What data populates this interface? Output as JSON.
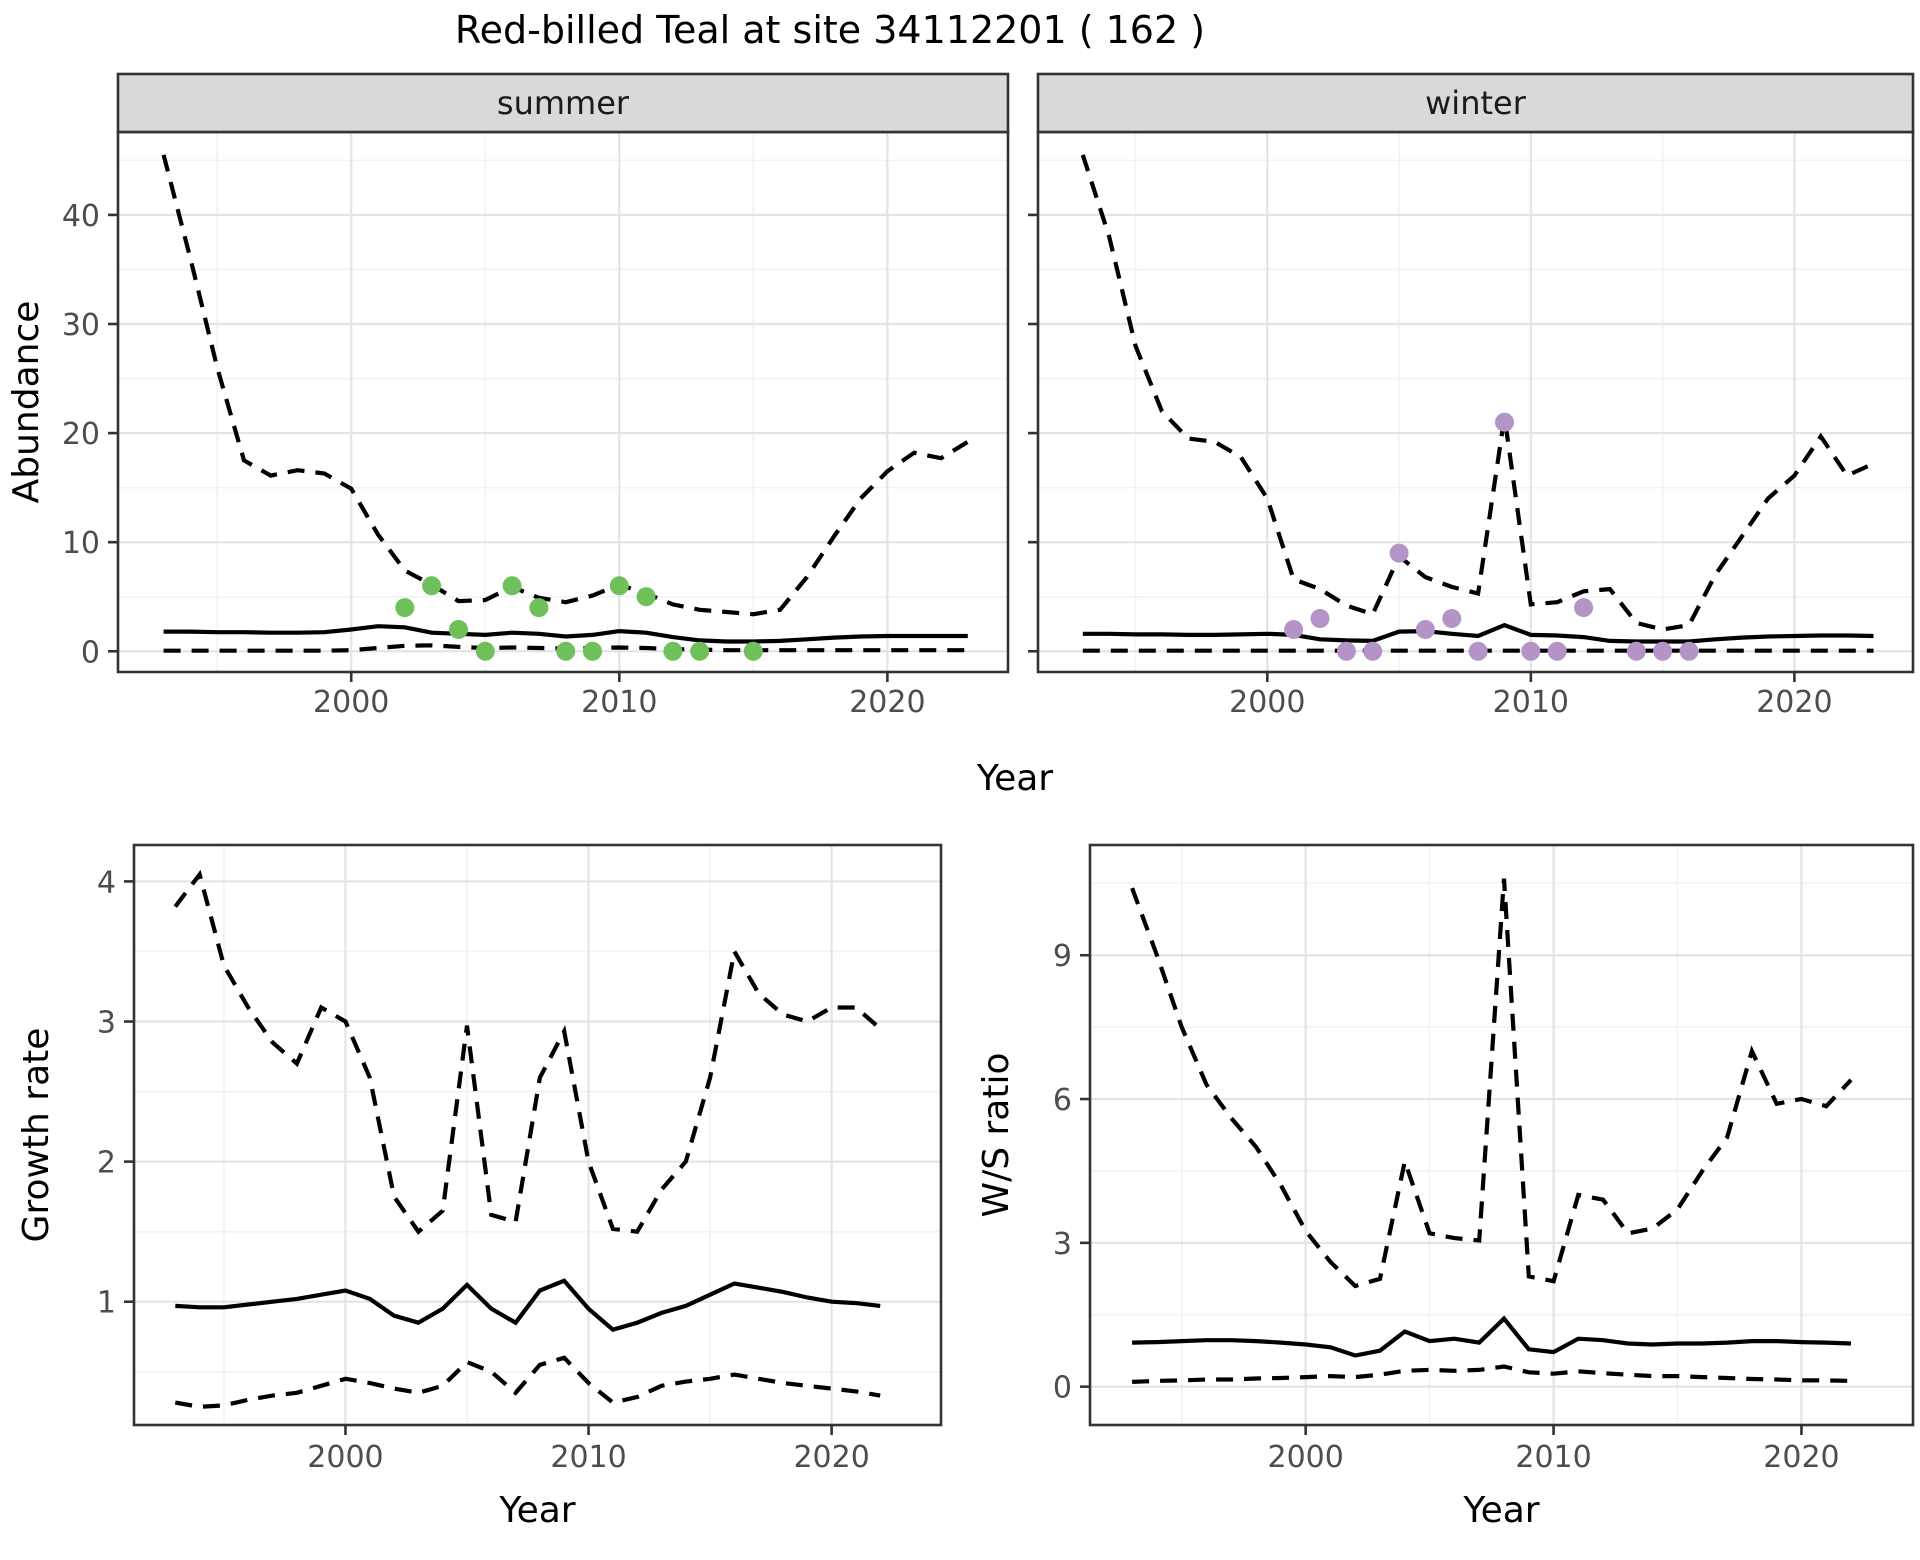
{
  "title": "Red-billed Teal at site 34112201 ( 162 )",
  "facets": {
    "summer_label": "summer",
    "winter_label": "winter"
  },
  "axis_titles": {
    "top_x": "Year",
    "top_y": "Abundance",
    "growth_x": "Year",
    "growth_y": "Growth rate",
    "ws_x": "Year",
    "ws_y": "W/S ratio"
  },
  "colors": {
    "summer_point": "#6fbf5a",
    "winter_point": "#b494c7",
    "line": "#000000",
    "strip_bg": "#d9d9d9",
    "panel_border": "#333333",
    "grid_major": "#e4e4e4",
    "grid_minor": "#f2f2f2",
    "tick_text": "#4d4d4d",
    "background": "#ffffff"
  },
  "chart_data": [
    {
      "id": "abundance-summer",
      "type": "line",
      "facet": "summer",
      "title": "summer",
      "xlabel": "Year",
      "ylabel": "Abundance",
      "xlim": [
        1991.3,
        2024.5
      ],
      "ylim": [
        -1.9,
        47.6
      ],
      "xticks": [
        2000,
        2010,
        2020
      ],
      "yticks": [
        0,
        10,
        20,
        30,
        40
      ],
      "x": [
        1993,
        1994,
        1995,
        1996,
        1997,
        1998,
        1999,
        2000,
        2001,
        2002,
        2003,
        2004,
        2005,
        2006,
        2007,
        2008,
        2009,
        2010,
        2011,
        2012,
        2013,
        2014,
        2015,
        2016,
        2017,
        2018,
        2019,
        2020,
        2021,
        2022,
        2023
      ],
      "series": [
        {
          "name": "upper_ci",
          "style": "dashed",
          "values": [
            45.5,
            36.0,
            26.0,
            17.5,
            16.1,
            16.6,
            16.3,
            14.9,
            10.7,
            7.4,
            6.1,
            4.6,
            4.7,
            5.9,
            4.9,
            4.5,
            5.1,
            6.1,
            5.3,
            4.3,
            3.8,
            3.6,
            3.4,
            3.8,
            6.8,
            10.5,
            14.0,
            16.5,
            18.2,
            17.7,
            19.2
          ]
        },
        {
          "name": "median",
          "style": "solid",
          "values": [
            1.8,
            1.8,
            1.75,
            1.75,
            1.7,
            1.7,
            1.75,
            2.0,
            2.3,
            2.2,
            1.7,
            1.6,
            1.5,
            1.7,
            1.6,
            1.35,
            1.5,
            1.85,
            1.7,
            1.3,
            1.0,
            0.9,
            0.9,
            0.95,
            1.1,
            1.25,
            1.35,
            1.4,
            1.4,
            1.4,
            1.4
          ]
        },
        {
          "name": "lower_ci",
          "style": "dashed",
          "values": [
            0.05,
            0.05,
            0.05,
            0.05,
            0.05,
            0.05,
            0.05,
            0.1,
            0.3,
            0.5,
            0.55,
            0.4,
            0.3,
            0.35,
            0.3,
            0.25,
            0.3,
            0.35,
            0.3,
            0.2,
            0.15,
            0.1,
            0.1,
            0.1,
            0.1,
            0.1,
            0.1,
            0.1,
            0.1,
            0.1,
            0.1
          ]
        }
      ],
      "points": {
        "name": "observed_counts",
        "color_key": "summer_point",
        "x": [
          2002,
          2003,
          2004,
          2005,
          2006,
          2007,
          2008,
          2009,
          2010,
          2011,
          2012,
          2013,
          2015
        ],
        "y": [
          4,
          6,
          2,
          0,
          6,
          4,
          0,
          0,
          6,
          5,
          0,
          0,
          0
        ]
      }
    },
    {
      "id": "abundance-winter",
      "type": "line",
      "facet": "winter",
      "title": "winter",
      "xlabel": "Year",
      "ylabel": "Abundance",
      "xlim": [
        1991.3,
        2024.5
      ],
      "ylim": [
        -1.9,
        47.6
      ],
      "xticks": [
        2000,
        2010,
        2020
      ],
      "yticks": [
        0,
        10,
        20,
        30,
        40
      ],
      "x": [
        1993,
        1994,
        1995,
        1996,
        1997,
        1998,
        1999,
        2000,
        2001,
        2002,
        2003,
        2004,
        2005,
        2006,
        2007,
        2008,
        2009,
        2010,
        2011,
        2012,
        2013,
        2014,
        2015,
        2016,
        2017,
        2018,
        2019,
        2020,
        2021,
        2022,
        2023
      ],
      "series": [
        {
          "name": "upper_ci",
          "style": "dashed",
          "values": [
            45.5,
            38.0,
            28.0,
            22.0,
            19.5,
            19.2,
            17.8,
            14.0,
            6.6,
            5.7,
            4.2,
            3.4,
            8.7,
            6.8,
            5.9,
            5.3,
            21.5,
            4.3,
            4.5,
            5.5,
            5.7,
            2.6,
            2.0,
            2.4,
            7.0,
            10.5,
            14.0,
            16.1,
            19.7,
            16.1,
            17.2
          ]
        },
        {
          "name": "median",
          "style": "solid",
          "values": [
            1.6,
            1.6,
            1.55,
            1.55,
            1.5,
            1.5,
            1.55,
            1.6,
            1.5,
            1.1,
            1.0,
            0.95,
            1.8,
            1.85,
            1.6,
            1.4,
            2.4,
            1.5,
            1.45,
            1.3,
            0.95,
            0.9,
            0.9,
            0.9,
            1.1,
            1.25,
            1.35,
            1.4,
            1.45,
            1.45,
            1.4
          ]
        },
        {
          "name": "lower_ci",
          "style": "dashed",
          "values": [
            0.05,
            0.05,
            0.05,
            0.05,
            0.05,
            0.05,
            0.05,
            0.05,
            0.05,
            0.05,
            0.05,
            0.05,
            0.05,
            0.05,
            0.05,
            0.05,
            0.05,
            0.05,
            0.05,
            0.05,
            0.05,
            0.05,
            0.05,
            0.05,
            0.05,
            0.05,
            0.05,
            0.05,
            0.05,
            0.05,
            0.05
          ]
        }
      ],
      "points": {
        "name": "observed_counts",
        "color_key": "winter_point",
        "x": [
          2001,
          2002,
          2003,
          2004,
          2005,
          2006,
          2007,
          2008,
          2009,
          2010,
          2011,
          2012,
          2014,
          2015,
          2016
        ],
        "y": [
          2,
          3,
          0,
          0,
          9,
          2,
          3,
          0,
          21,
          0,
          0,
          4,
          0,
          0,
          0
        ]
      }
    },
    {
      "id": "growth-rate",
      "type": "line",
      "facet": null,
      "title": "",
      "xlabel": "Year",
      "ylabel": "Growth rate",
      "xlim": [
        1991.3,
        2024.5
      ],
      "ylim": [
        0.12,
        4.26
      ],
      "xticks": [
        2000,
        2010,
        2020
      ],
      "yticks": [
        1,
        2,
        3,
        4
      ],
      "x": [
        1993,
        1994,
        1995,
        1996,
        1997,
        1998,
        1999,
        2000,
        2001,
        2002,
        2003,
        2004,
        2005,
        2006,
        2007,
        2008,
        2009,
        2010,
        2011,
        2012,
        2013,
        2014,
        2015,
        2016,
        2017,
        2018,
        2019,
        2020,
        2021,
        2022
      ],
      "series": [
        {
          "name": "upper_ci",
          "style": "dashed",
          "values": [
            3.82,
            4.05,
            3.4,
            3.1,
            2.85,
            2.7,
            3.1,
            3.0,
            2.6,
            1.75,
            1.5,
            1.65,
            2.97,
            1.62,
            1.57,
            2.6,
            2.93,
            2.0,
            1.52,
            1.5,
            1.8,
            2.0,
            2.6,
            3.5,
            3.2,
            3.05,
            3.0,
            3.1,
            3.1,
            2.95
          ]
        },
        {
          "name": "median",
          "style": "solid",
          "values": [
            0.97,
            0.96,
            0.96,
            0.98,
            1.0,
            1.02,
            1.05,
            1.08,
            1.02,
            0.9,
            0.85,
            0.95,
            1.12,
            0.95,
            0.85,
            1.08,
            1.15,
            0.95,
            0.8,
            0.85,
            0.92,
            0.97,
            1.05,
            1.13,
            1.1,
            1.07,
            1.03,
            1.0,
            0.99,
            0.97
          ]
        },
        {
          "name": "lower_ci",
          "style": "dashed",
          "values": [
            0.28,
            0.25,
            0.26,
            0.3,
            0.33,
            0.35,
            0.4,
            0.45,
            0.42,
            0.38,
            0.35,
            0.4,
            0.57,
            0.5,
            0.35,
            0.55,
            0.6,
            0.42,
            0.28,
            0.32,
            0.4,
            0.43,
            0.45,
            0.48,
            0.45,
            0.42,
            0.4,
            0.38,
            0.36,
            0.33
          ]
        }
      ],
      "points": null
    },
    {
      "id": "ws-ratio",
      "type": "line",
      "facet": null,
      "title": "",
      "xlabel": "Year",
      "ylabel": "W/S ratio",
      "xlim": [
        1991.3,
        2024.5
      ],
      "ylim": [
        -0.8,
        11.3
      ],
      "xticks": [
        2000,
        2010,
        2020
      ],
      "yticks": [
        0,
        3,
        6,
        9
      ],
      "x": [
        1993,
        1994,
        1995,
        1996,
        1997,
        1998,
        1999,
        2000,
        2001,
        2002,
        2003,
        2004,
        2005,
        2006,
        2007,
        2008,
        2009,
        2010,
        2011,
        2012,
        2013,
        2014,
        2015,
        2016,
        2017,
        2018,
        2019,
        2020,
        2021,
        2022
      ],
      "series": [
        {
          "name": "upper_ci",
          "style": "dashed",
          "values": [
            10.4,
            9.0,
            7.5,
            6.3,
            5.6,
            5.0,
            4.2,
            3.25,
            2.6,
            2.1,
            2.25,
            4.7,
            3.2,
            3.1,
            3.05,
            10.6,
            2.3,
            2.2,
            4.0,
            3.9,
            3.2,
            3.3,
            3.7,
            4.5,
            5.2,
            7.0,
            5.9,
            6.0,
            5.85,
            6.4
          ]
        },
        {
          "name": "median",
          "style": "solid",
          "values": [
            0.92,
            0.93,
            0.95,
            0.97,
            0.97,
            0.95,
            0.92,
            0.88,
            0.82,
            0.65,
            0.75,
            1.15,
            0.95,
            1.0,
            0.92,
            1.42,
            0.78,
            0.72,
            1.0,
            0.97,
            0.9,
            0.88,
            0.9,
            0.9,
            0.92,
            0.95,
            0.95,
            0.93,
            0.92,
            0.9
          ]
        },
        {
          "name": "lower_ci",
          "style": "dashed",
          "values": [
            0.1,
            0.12,
            0.13,
            0.15,
            0.15,
            0.17,
            0.18,
            0.2,
            0.22,
            0.2,
            0.25,
            0.33,
            0.35,
            0.33,
            0.35,
            0.42,
            0.3,
            0.27,
            0.32,
            0.28,
            0.25,
            0.22,
            0.22,
            0.2,
            0.18,
            0.16,
            0.15,
            0.13,
            0.13,
            0.12
          ]
        }
      ],
      "points": null
    }
  ]
}
